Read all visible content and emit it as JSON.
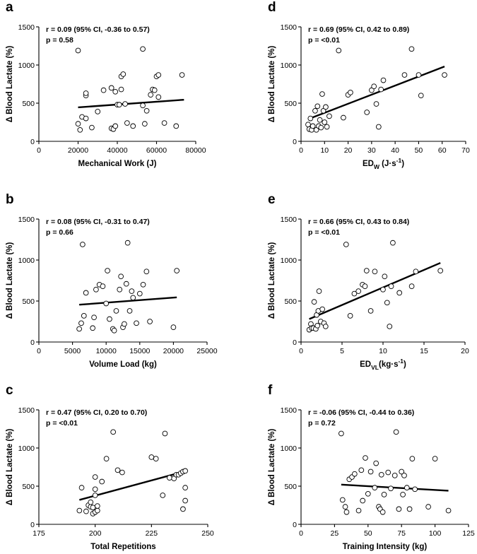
{
  "chart_data": [
    {
      "id": "a",
      "type": "scatter",
      "panel_label": "a",
      "stat_r": "r = 0.09 (95% CI, -0.36 to 0.57)",
      "stat_p": "p = 0.58",
      "ylabel": "Δ Blood Lactate (%)",
      "xlabel_parts": [
        {
          "t": "Mechanical Work (J)"
        }
      ],
      "xlim": [
        0,
        80000
      ],
      "ylim": [
        0,
        1500
      ],
      "xticks": [
        0,
        20000,
        40000,
        60000,
        80000
      ],
      "yticks": [
        0,
        500,
        1000,
        1500
      ],
      "x": [
        20000,
        21000,
        20000,
        22000,
        24000,
        24000,
        24000,
        27000,
        30000,
        33000,
        37000,
        38000,
        37000,
        39000,
        39000,
        40000,
        41000,
        42000,
        42000,
        43000,
        44000,
        45000,
        48000,
        53000,
        53000,
        54000,
        55000,
        57000,
        58000,
        59000,
        60000,
        61000,
        61000,
        64000,
        70000,
        73000
      ],
      "y": [
        1190,
        150,
        230,
        320,
        600,
        630,
        300,
        180,
        390,
        670,
        170,
        160,
        700,
        650,
        200,
        480,
        480,
        680,
        850,
        880,
        490,
        240,
        200,
        1210,
        470,
        230,
        400,
        610,
        680,
        670,
        850,
        870,
        580,
        240,
        200,
        870
      ],
      "fit": [
        [
          20000,
          445
        ],
        [
          74000,
          545
        ]
      ]
    },
    {
      "id": "b",
      "type": "scatter",
      "panel_label": "b",
      "stat_r": "r = 0.08 (95% CI, -0.31 to 0.47)",
      "stat_p": "p = 0.66",
      "ylabel": "Δ Blood Lactate (%)",
      "xlabel_parts": [
        {
          "t": "Volume Load (kg)"
        }
      ],
      "xlim": [
        0,
        25000
      ],
      "ylim": [
        0,
        1500
      ],
      "xticks": [
        0,
        5000,
        10000,
        15000,
        20000,
        25000
      ],
      "yticks": [
        0,
        500,
        1000,
        1500
      ],
      "x": [
        6000,
        6300,
        6500,
        6700,
        7000,
        8000,
        8200,
        8500,
        9000,
        9500,
        10000,
        10200,
        10500,
        11000,
        11200,
        11500,
        12000,
        12200,
        12500,
        12700,
        13000,
        13200,
        13500,
        13800,
        14000,
        14500,
        15000,
        15500,
        16000,
        16500,
        20000,
        20500
      ],
      "y": [
        160,
        230,
        1190,
        320,
        600,
        170,
        300,
        640,
        700,
        680,
        470,
        870,
        280,
        160,
        140,
        380,
        640,
        800,
        180,
        220,
        710,
        1210,
        380,
        620,
        540,
        230,
        590,
        700,
        860,
        250,
        180,
        870
      ],
      "fit": [
        [
          6000,
          455
        ],
        [
          20500,
          545
        ]
      ]
    },
    {
      "id": "c",
      "type": "scatter",
      "panel_label": "c",
      "stat_r": "r = 0.47 (95% CI, 0.20 to 0.70)",
      "stat_p": "p = <0.01",
      "ylabel": "Δ Blood Lactate (%)",
      "xlabel_parts": [
        {
          "t": "Total Repetitions"
        }
      ],
      "xlim": [
        175,
        250
      ],
      "ylim": [
        0,
        1500
      ],
      "xticks": [
        175,
        200,
        225,
        250
      ],
      "yticks": [
        0,
        500,
        1000,
        1500
      ],
      "x": [
        193,
        194,
        196,
        197,
        198,
        198,
        199,
        199,
        200,
        200,
        200,
        200,
        201,
        201,
        203,
        205,
        208,
        210,
        212,
        225,
        227,
        230,
        231,
        233,
        235,
        236,
        237,
        238,
        239,
        239,
        240,
        240,
        240
      ],
      "y": [
        180,
        480,
        170,
        250,
        230,
        290,
        220,
        140,
        160,
        380,
        460,
        620,
        180,
        240,
        560,
        860,
        1210,
        710,
        680,
        880,
        860,
        380,
        1190,
        610,
        600,
        650,
        650,
        670,
        200,
        690,
        480,
        310,
        700
      ],
      "fit": [
        [
          193,
          320
        ],
        [
          240,
          695
        ]
      ]
    },
    {
      "id": "d",
      "type": "scatter",
      "panel_label": "d",
      "stat_r": "r = 0.69 (95% CI, 0.42 to 0.89)",
      "stat_p": "p = <0.01",
      "ylabel": "Δ Blood Lactate (%)",
      "xlabel_parts": [
        {
          "t": "ED"
        },
        {
          "t": "W",
          "sub": true
        },
        {
          "t": " (J·s"
        },
        {
          "t": "-1",
          "sup": true
        },
        {
          "t": ")"
        }
      ],
      "xlim": [
        0,
        70
      ],
      "ylim": [
        0,
        1500
      ],
      "xticks": [
        0,
        10,
        20,
        30,
        40,
        50,
        60,
        70
      ],
      "yticks": [
        0,
        500,
        1000,
        1500
      ],
      "x": [
        3,
        3.5,
        4,
        4.5,
        5,
        6,
        6.5,
        7,
        7.5,
        8,
        8.5,
        9,
        9.5,
        10,
        10.5,
        11,
        12,
        16,
        18,
        20,
        21,
        28,
        30,
        31,
        32,
        33,
        34,
        35,
        44,
        47,
        50,
        51,
        61
      ],
      "y": [
        220,
        160,
        300,
        150,
        200,
        400,
        150,
        460,
        200,
        280,
        180,
        620,
        400,
        250,
        450,
        190,
        330,
        1190,
        310,
        610,
        640,
        380,
        670,
        720,
        490,
        190,
        680,
        800,
        870,
        1210,
        870,
        600,
        870
      ],
      "fit": [
        [
          3,
          290
        ],
        [
          61,
          980
        ]
      ]
    },
    {
      "id": "e",
      "type": "scatter",
      "panel_label": "e",
      "stat_r": "r = 0.66 (95% CI, 0.43 to 0.84)",
      "stat_p": "p = <0.01",
      "ylabel": "Δ Blood Lactate (%)",
      "xlabel_parts": [
        {
          "t": "ED"
        },
        {
          "t": "VL",
          "sub": true
        },
        {
          "t": "(kg·s"
        },
        {
          "t": "-1",
          "sup": true
        },
        {
          "t": ")"
        }
      ],
      "xlim": [
        0,
        20
      ],
      "ylim": [
        0,
        1500
      ],
      "xticks": [
        0,
        5,
        10,
        15,
        20
      ],
      "yticks": [
        0,
        500,
        1000,
        1500
      ],
      "x": [
        1,
        1.2,
        1.3,
        1.5,
        1.6,
        1.8,
        1.9,
        2,
        2.1,
        2.2,
        2.4,
        2.6,
        2.8,
        3,
        5.5,
        6,
        6.5,
        7,
        7.5,
        7.8,
        8,
        8.5,
        9,
        10,
        10.2,
        10.5,
        10.8,
        11,
        11.2,
        12,
        13.5,
        14,
        17
      ],
      "y": [
        150,
        220,
        170,
        170,
        490,
        160,
        330,
        200,
        380,
        620,
        250,
        400,
        230,
        190,
        1190,
        320,
        590,
        620,
        700,
        680,
        870,
        380,
        860,
        640,
        800,
        480,
        190,
        680,
        1210,
        600,
        680,
        860,
        870
      ],
      "fit": [
        [
          1,
          280
        ],
        [
          17,
          965
        ]
      ]
    },
    {
      "id": "f",
      "type": "scatter",
      "panel_label": "f",
      "stat_r": "r = -0.06 (95% CI, -0.44 to 0.36)",
      "stat_p": "p = 0.72",
      "ylabel": "Δ Blood Lactate (%)",
      "xlabel_parts": [
        {
          "t": "Training Intensity (kg)"
        }
      ],
      "xlim": [
        0,
        125
      ],
      "ylim": [
        0,
        1500
      ],
      "xticks": [
        0,
        25,
        50,
        75,
        100,
        125
      ],
      "yticks": [
        0,
        500,
        1000,
        1500
      ],
      "x": [
        30,
        31,
        33,
        34,
        36,
        38,
        40,
        43,
        45,
        46,
        48,
        50,
        52,
        55,
        56,
        58,
        59,
        60,
        61,
        62,
        65,
        67,
        70,
        71,
        73,
        75,
        76,
        77,
        79,
        81,
        83,
        85,
        95,
        100,
        110
      ],
      "y": [
        1190,
        320,
        230,
        160,
        590,
        620,
        660,
        180,
        710,
        310,
        870,
        400,
        690,
        480,
        800,
        230,
        200,
        650,
        160,
        390,
        680,
        470,
        640,
        1210,
        200,
        690,
        390,
        640,
        480,
        200,
        860,
        460,
        230,
        860,
        180
      ],
      "fit": [
        [
          30,
          520
        ],
        [
          110,
          440
        ]
      ]
    }
  ]
}
